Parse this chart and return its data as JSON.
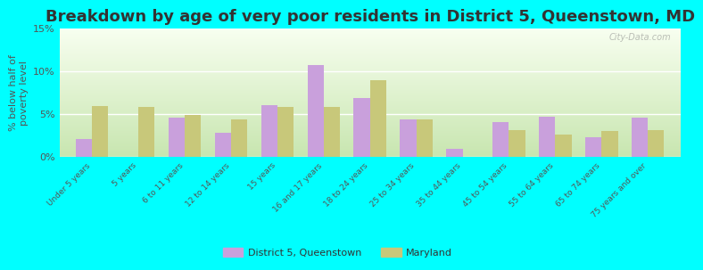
{
  "title": "Breakdown by age of very poor residents in District 5, Queenstown, MD",
  "ylabel": "% below half of\npoverty level",
  "categories": [
    "Under 5 years",
    "5 years",
    "6 to 11 years",
    "12 to 14 years",
    "15 years",
    "16 and 17 years",
    "18 to 24 years",
    "25 to 34 years",
    "35 to 44 years",
    "45 to 54 years",
    "55 to 64 years",
    "65 to 74 years",
    "75 years and over"
  ],
  "district5_values": [
    2.0,
    0.0,
    4.5,
    2.8,
    6.0,
    10.7,
    6.8,
    4.3,
    0.9,
    4.0,
    4.6,
    2.2,
    4.5
  ],
  "maryland_values": [
    5.9,
    5.8,
    4.9,
    4.3,
    5.8,
    5.8,
    8.9,
    4.3,
    0.0,
    3.1,
    2.6,
    3.0,
    3.1
  ],
  "district5_color": "#c9a0dc",
  "maryland_color": "#c8c87a",
  "background_color": "#00ffff",
  "ylim": [
    0,
    15
  ],
  "yticks": [
    0,
    5,
    10,
    15
  ],
  "ytick_labels": [
    "0%",
    "5%",
    "10%",
    "15%"
  ],
  "title_fontsize": 13,
  "watermark": "City-Data.com"
}
